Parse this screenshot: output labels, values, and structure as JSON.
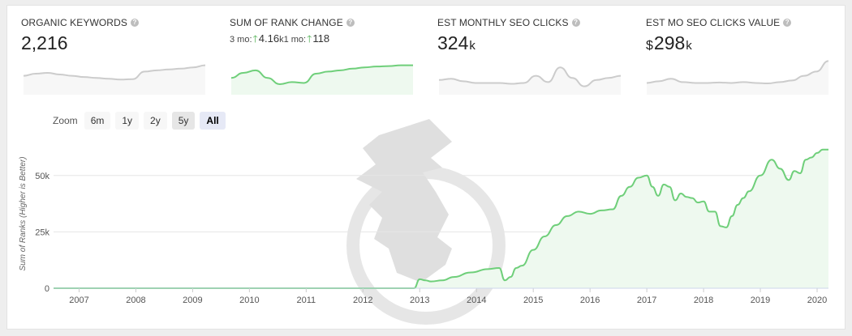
{
  "metrics": {
    "organic_keywords": {
      "title": "ORGANIC KEYWORDS",
      "value": "2,216"
    },
    "rank_change": {
      "title": "SUM OF RANK CHANGE",
      "prefix_3mo": "3 mo:",
      "val_3mo": "4.16",
      "unit_3mo": "k",
      "prefix_1mo": "1 mo:",
      "val_1mo": "118"
    },
    "seo_clicks": {
      "title": "EST MONTHLY SEO CLICKS",
      "value": "324",
      "unit": "k"
    },
    "seo_value": {
      "title": "EST MO SEO CLICKS VALUE",
      "currency": "$",
      "value": "298",
      "unit": "k"
    }
  },
  "help_glyph": "?",
  "up_arrow": "🡑",
  "zoom": {
    "label": "Zoom",
    "buttons": [
      "6m",
      "1y",
      "2y",
      "5y",
      "All"
    ],
    "active": "All"
  },
  "colors": {
    "series": "#6fcf7a",
    "fill": "#eef9ef",
    "spark_gray": "#cccccc"
  },
  "chart_data": {
    "type": "area",
    "ylabel": "Sum of Ranks (Higher is Better)",
    "xlim": [
      2006.55,
      2020.2
    ],
    "ylim": [
      0,
      65000
    ],
    "yticks": [
      0,
      25000,
      50000
    ],
    "ytick_labels": [
      "0",
      "25k",
      "50k"
    ],
    "xticks": [
      2007,
      2008,
      2009,
      2010,
      2011,
      2012,
      2013,
      2014,
      2015,
      2016,
      2017,
      2018,
      2019,
      2020
    ],
    "xtick_labels": [
      "2007",
      "2008",
      "2009",
      "2010",
      "2011",
      "2012",
      "2013",
      "2014",
      "2015",
      "2016",
      "2017",
      "2018",
      "2019",
      "2020"
    ],
    "grid": true,
    "x": [
      2006.55,
      2012.9,
      2013.0,
      2013.1,
      2013.2,
      2013.4,
      2013.6,
      2013.9,
      2014.2,
      2014.4,
      2014.5,
      2014.6,
      2014.7,
      2014.8,
      2015.0,
      2015.2,
      2015.4,
      2015.6,
      2015.8,
      2016.0,
      2016.2,
      2016.4,
      2016.55,
      2016.7,
      2016.85,
      2017.0,
      2017.1,
      2017.2,
      2017.3,
      2017.4,
      2017.5,
      2017.6,
      2017.7,
      2017.8,
      2017.9,
      2018.0,
      2018.1,
      2018.2,
      2018.3,
      2018.4,
      2018.5,
      2018.6,
      2018.7,
      2018.8,
      2019.0,
      2019.2,
      2019.35,
      2019.5,
      2019.6,
      2019.7,
      2019.8,
      2019.9,
      2020.0,
      2020.1,
      2020.2
    ],
    "series": [
      {
        "name": "",
        "values": [
          0,
          0,
          4000,
          3500,
          3000,
          3500,
          5000,
          7000,
          8500,
          9000,
          3500,
          5000,
          9000,
          10000,
          17000,
          23000,
          28000,
          32000,
          34000,
          33000,
          34500,
          35000,
          41000,
          45000,
          49000,
          50000,
          45000,
          41000,
          46000,
          45000,
          39000,
          42000,
          40500,
          40000,
          38000,
          38500,
          34000,
          34000,
          27500,
          27000,
          32000,
          37000,
          40000,
          43000,
          50000,
          57000,
          53000,
          48000,
          52000,
          51000,
          57000,
          58000,
          60000,
          61500,
          61500
        ]
      }
    ]
  },
  "sparks": {
    "organic_keywords": [
      0.55,
      0.5,
      0.48,
      0.52,
      0.55,
      0.58,
      0.6,
      0.62,
      0.64,
      0.63,
      0.45,
      0.42,
      0.4,
      0.38,
      0.35,
      0.3
    ],
    "rank_change": [
      0.6,
      0.48,
      0.42,
      0.6,
      0.75,
      0.7,
      0.72,
      0.5,
      0.45,
      0.42,
      0.38,
      0.35,
      0.33,
      0.32,
      0.3,
      0.3
    ],
    "seo_clicks": [
      0.65,
      0.62,
      0.68,
      0.72,
      0.72,
      0.72,
      0.74,
      0.72,
      0.55,
      0.7,
      0.35,
      0.6,
      0.8,
      0.65,
      0.6,
      0.55
    ],
    "seo_value": [
      0.72,
      0.68,
      0.62,
      0.7,
      0.72,
      0.72,
      0.71,
      0.72,
      0.7,
      0.72,
      0.73,
      0.7,
      0.66,
      0.55,
      0.45,
      0.2
    ]
  }
}
